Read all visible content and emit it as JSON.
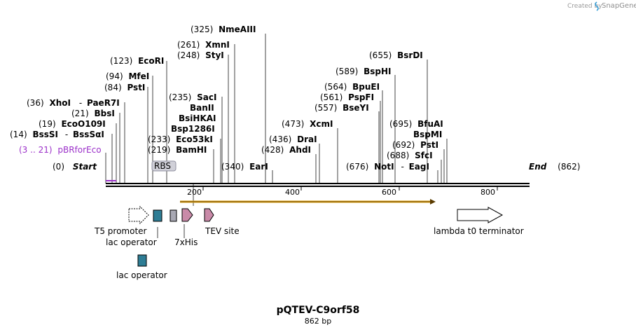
{
  "header": {
    "created_by": "Created by",
    "brand": "SnapGene"
  },
  "plasmid": {
    "name": "pQTEV-C9orf58",
    "size_label": "862 bp",
    "total_bp": 862
  },
  "ends": {
    "start": {
      "num": "(0)",
      "label": "Start"
    },
    "end": {
      "label": "End",
      "num": "(862)"
    }
  },
  "primer": {
    "range": "(3 .. 21)",
    "name": "pBRforEco",
    "color": "#9b30c9"
  },
  "sites": [
    {
      "num": "(14)",
      "name": "BssSI",
      "extra": "BssSαI",
      "bp": 14
    },
    {
      "num": "(19)",
      "name": "EcoO109I",
      "bp": 19
    },
    {
      "num": "(21)",
      "name": "BbsI",
      "bp": 21
    },
    {
      "num": "(36)",
      "name": "XhoI",
      "extra": "PaeR7I",
      "bp": 36
    },
    {
      "num": "(84)",
      "name": "PstI",
      "bp": 84
    },
    {
      "num": "(94)",
      "name": "MfeI",
      "bp": 94
    },
    {
      "num": "(123)",
      "name": "EcoRI",
      "bp": 123
    },
    {
      "num": "(219)",
      "name": "BamHI",
      "bp": 219
    },
    {
      "num": "(233)",
      "name": "Eco53kI",
      "bp": 233
    },
    {
      "num": "",
      "name": "Bsp1286I",
      "bp": 235
    },
    {
      "num": "",
      "name": "BsiHKAI",
      "bp": 235
    },
    {
      "num": "",
      "name": "BanII",
      "bp": 235
    },
    {
      "num": "(235)",
      "name": "SacI",
      "bp": 235
    },
    {
      "num": "(248)",
      "name": "StyI",
      "bp": 248
    },
    {
      "num": "(261)",
      "name": "XmnI",
      "bp": 261
    },
    {
      "num": "(325)",
      "name": "NmeAIII",
      "bp": 325
    },
    {
      "num": "(340)",
      "name": "EarI",
      "bp": 340
    },
    {
      "num": "(428)",
      "name": "AhdI",
      "bp": 428
    },
    {
      "num": "(436)",
      "name": "DraI",
      "bp": 436
    },
    {
      "num": "(473)",
      "name": "XcmI",
      "bp": 473
    },
    {
      "num": "(557)",
      "name": "BseYI",
      "bp": 557
    },
    {
      "num": "(561)",
      "name": "PspFI",
      "bp": 561
    },
    {
      "num": "(564)",
      "name": "BpuEI",
      "bp": 564
    },
    {
      "num": "(589)",
      "name": "BspHI",
      "bp": 589
    },
    {
      "num": "(655)",
      "name": "BsrDI",
      "bp": 655
    },
    {
      "num": "(676)",
      "name": "NotI",
      "extra": "EagI",
      "bp": 676
    },
    {
      "num": "(688)",
      "name": "SfcI",
      "bp": 688
    },
    {
      "num": "(692)",
      "name": "PstI",
      "bp": 692
    },
    {
      "num": "",
      "name": "BspMI",
      "bp": 695
    },
    {
      "num": "(695)",
      "name": "BfuAI",
      "bp": 695
    }
  ],
  "ruler": {
    "ticks": [
      "200",
      "400",
      "600",
      "800"
    ]
  },
  "orf": {
    "color": "#e6a817"
  },
  "features": [
    {
      "label": "T5 promoter",
      "kind": "promoter",
      "color": "#ffffff"
    },
    {
      "label": "lac operator",
      "kind": "operator",
      "color": "#2e7d95"
    },
    {
      "label": "lac operator",
      "kind": "operator",
      "color": "#2e7d95"
    },
    {
      "label": "RBS",
      "kind": "rbs",
      "color": "#a8a8b3"
    },
    {
      "label": "7xHis",
      "kind": "tag",
      "color": "#c98aa8"
    },
    {
      "label": "TEV site",
      "kind": "site",
      "color": "#c98aa8"
    },
    {
      "label": "lambda t0 terminator",
      "kind": "terminator",
      "color": "#ffffff"
    }
  ]
}
